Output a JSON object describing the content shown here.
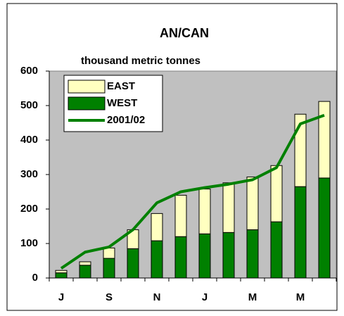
{
  "chart_data": {
    "type": "bar",
    "stacked": true,
    "title": "AN/CAN",
    "subtitle": "thousand metric tonnes",
    "categories": [
      "J",
      null,
      "S",
      null,
      "N",
      null,
      "J",
      null,
      "M",
      null,
      "M",
      null
    ],
    "series": [
      {
        "name": "WEST",
        "color": "#008000",
        "values": [
          15,
          37,
          57,
          85,
          108,
          120,
          128,
          132,
          140,
          163,
          265,
          290
        ]
      },
      {
        "name": "EAST",
        "color": "#ffffc0",
        "values": [
          7,
          10,
          30,
          55,
          79,
          120,
          130,
          144,
          153,
          163,
          210,
          222
        ]
      },
      {
        "name": "2001/02",
        "type": "line",
        "color": "#008000",
        "values": [
          28,
          75,
          90,
          140,
          218,
          250,
          262,
          272,
          285,
          320,
          447,
          472
        ]
      }
    ],
    "ylim": [
      0,
      600
    ],
    "yticks": [
      0,
      100,
      200,
      300,
      400,
      500,
      600
    ],
    "plot_background": "#c0c0c0",
    "grid": false,
    "legend": "upper left"
  }
}
